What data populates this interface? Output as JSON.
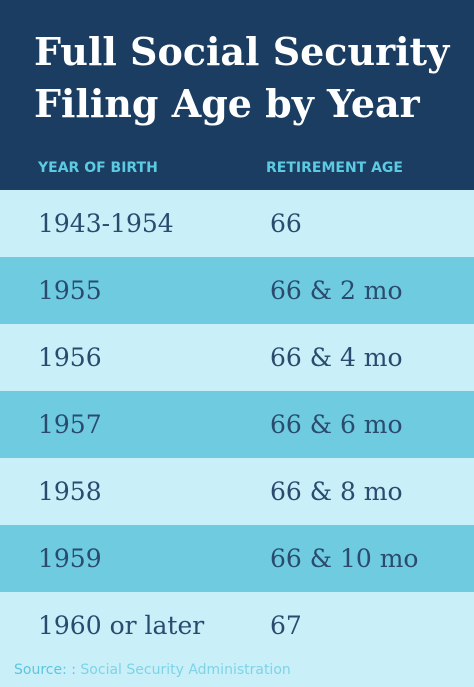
{
  "header": {
    "title_lines": [
      "Full Social Security",
      "Filing Age by Year"
    ]
  },
  "table": {
    "columns": [
      "YEAR OF BIRTH",
      "RETIREMENT AGE"
    ],
    "rows": [
      [
        "1943-1954",
        "66"
      ],
      [
        "1955",
        "66 & 2 mo"
      ],
      [
        "1956",
        "66 & 4 mo"
      ],
      [
        "1957",
        "66 & 6 mo"
      ],
      [
        "1958",
        "66 & 8 mo"
      ],
      [
        "1959",
        "66 & 10 mo"
      ],
      [
        "1960 or later",
        "67"
      ]
    ]
  },
  "footer": {
    "source_label": "Source: :",
    "source_text": "Social Security Administration"
  }
}
